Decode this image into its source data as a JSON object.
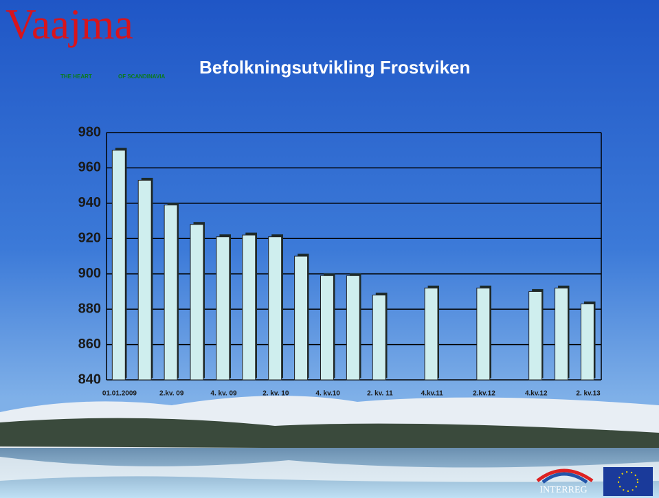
{
  "logo": {
    "name": "Vaajma",
    "tagline_left": "THE HEART",
    "tagline_right": "OF SCANDINAVIA"
  },
  "footer": {
    "partner": "INTERREG"
  },
  "chart_data": {
    "type": "bar",
    "title": "Befolkningsutvikling Frostviken",
    "categories": [
      "01.01.2009",
      null,
      "2.kv. 09",
      null,
      "4. kv. 09",
      null,
      "2. kv. 10",
      null,
      "4. kv.10",
      null,
      "2. kv. 11",
      null,
      "4.kv.11",
      null,
      "2.kv.12",
      null,
      "4.kv.12",
      null,
      "2. kv.13"
    ],
    "values": [
      970,
      953,
      939,
      928,
      921,
      922,
      921,
      910,
      899,
      899,
      888,
      null,
      892,
      null,
      892,
      null,
      890,
      892,
      883
    ],
    "color": "#cfeeee",
    "ylim": [
      840,
      980
    ],
    "yticks": [
      840,
      860,
      880,
      900,
      920,
      940,
      960,
      980
    ],
    "grid": true
  }
}
